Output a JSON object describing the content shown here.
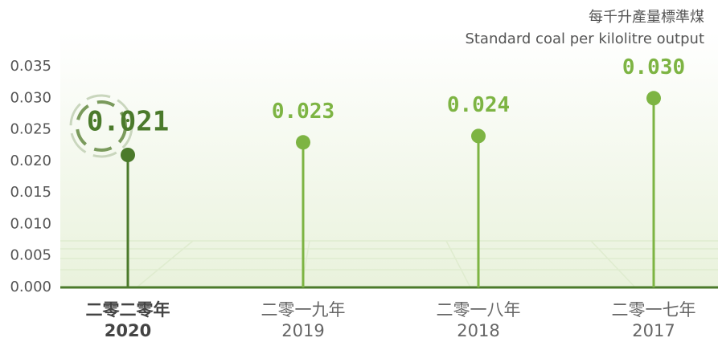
{
  "chart_data": {
    "type": "lollipop",
    "title": "每千升產量標準煤",
    "subtitle": "Standard coal per kilolitre output",
    "categories": [
      "2020",
      "2019",
      "2018",
      "2017"
    ],
    "category_labels_zh": [
      "二零二零年",
      "二零一九年",
      "二零一八年",
      "二零一七年"
    ],
    "values": [
      0.021,
      0.023,
      0.024,
      0.03
    ],
    "value_labels": [
      "0.021",
      "0.023",
      "0.024",
      "0.030"
    ],
    "colors": [
      "#4b7a2b",
      "#7db443",
      "#7db443",
      "#7db443"
    ],
    "ylim": [
      0,
      0.035
    ],
    "yticks": [
      {
        "value": 0,
        "label": "0.000"
      },
      {
        "value": 0.005,
        "label": "0.005"
      },
      {
        "value": 0.01,
        "label": "0.010"
      },
      {
        "value": 0.015,
        "label": "0.015"
      },
      {
        "value": 0.02,
        "label": "0.020"
      },
      {
        "value": 0.025,
        "label": "0.025"
      },
      {
        "value": 0.03,
        "label": "0.030"
      },
      {
        "value": 0.035,
        "label": "0.035"
      }
    ]
  }
}
